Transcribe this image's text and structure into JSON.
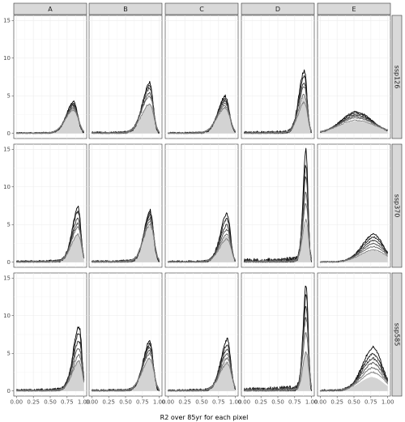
{
  "chart_data": {
    "type": "area",
    "title": "",
    "xlabel": "R2 over 85yr for each pixel",
    "ylabel": "",
    "xlim": [
      0,
      1
    ],
    "ylim": [
      0,
      15
    ],
    "x_ticks": [
      "0.00",
      "0.25",
      "0.50",
      "0.75",
      "1.00"
    ],
    "y_ticks": [
      "0",
      "5",
      "10",
      "15"
    ],
    "grid": true,
    "facet_columns": [
      "A",
      "B",
      "C",
      "D",
      "E"
    ],
    "facet_rows": [
      "ssp126",
      "ssp370",
      "ssp585"
    ],
    "fill_color": "#d3d3d3",
    "line_colors": [
      "#000000",
      "#1a1a1a",
      "#333333",
      "#4d4d4d",
      "#666666",
      "#808080"
    ],
    "panels": [
      {
        "row": "ssp126",
        "col": "A",
        "peak_x": 0.86,
        "peak_y": [
          4.1,
          3.8,
          3.6,
          3.4,
          3.2,
          3.0
        ],
        "fill_peak": 3.3,
        "width": 0.12,
        "right_width": 0.06
      },
      {
        "row": "ssp126",
        "col": "B",
        "peak_x": 0.87,
        "peak_y": [
          6.5,
          6.2,
          5.8,
          5.2,
          4.8,
          3.8
        ],
        "fill_peak": 3.8,
        "width": 0.12,
        "right_width": 0.05
      },
      {
        "row": "ssp126",
        "col": "C",
        "peak_x": 0.86,
        "peak_y": [
          4.8,
          4.5,
          4.2,
          3.9,
          3.6,
          3.3
        ],
        "fill_peak": 3.5,
        "width": 0.12,
        "right_width": 0.06
      },
      {
        "row": "ssp126",
        "col": "D",
        "peak_x": 0.9,
        "peak_y": [
          8.1,
          7.4,
          6.5,
          6.0,
          5.0,
          4.0
        ],
        "fill_peak": 4.8,
        "width": 0.09,
        "right_width": 0.04
      },
      {
        "row": "ssp126",
        "col": "E",
        "peak_x": 0.55,
        "peak_y": [
          2.8,
          2.6,
          2.4,
          2.2,
          2.0,
          1.7
        ],
        "fill_peak": 1.6,
        "width": 0.25,
        "right_width": 0.25
      },
      {
        "row": "ssp370",
        "col": "A",
        "peak_x": 0.92,
        "peak_y": [
          7.0,
          6.5,
          5.6,
          5.0,
          4.5,
          3.6
        ],
        "fill_peak": 3.6,
        "width": 0.1,
        "right_width": 0.04
      },
      {
        "row": "ssp370",
        "col": "B",
        "peak_x": 0.87,
        "peak_y": [
          6.6,
          6.3,
          6.0,
          5.6,
          5.2,
          4.8
        ],
        "fill_peak": 4.6,
        "width": 0.1,
        "right_width": 0.05
      },
      {
        "row": "ssp370",
        "col": "C",
        "peak_x": 0.88,
        "peak_y": [
          6.3,
          5.6,
          4.8,
          4.2,
          3.6,
          3.0
        ],
        "fill_peak": 3.4,
        "width": 0.11,
        "right_width": 0.05
      },
      {
        "row": "ssp370",
        "col": "D",
        "peak_x": 0.92,
        "peak_y": [
          14.2,
          12.5,
          11.0,
          9.0,
          7.5,
          5.5
        ],
        "fill_peak": 5.0,
        "width": 0.05,
        "right_width": 0.03
      },
      {
        "row": "ssp370",
        "col": "E",
        "peak_x": 0.8,
        "peak_y": [
          3.6,
          3.2,
          2.8,
          2.4,
          2.0,
          1.6
        ],
        "fill_peak": 1.5,
        "width": 0.2,
        "right_width": 0.15
      },
      {
        "row": "ssp585",
        "col": "A",
        "peak_x": 0.93,
        "peak_y": [
          8.4,
          7.5,
          6.5,
          5.5,
          4.6,
          3.8
        ],
        "fill_peak": 4.0,
        "width": 0.1,
        "right_width": 0.04
      },
      {
        "row": "ssp585",
        "col": "B",
        "peak_x": 0.86,
        "peak_y": [
          6.4,
          6.0,
          5.6,
          5.2,
          4.8,
          4.2
        ],
        "fill_peak": 4.2,
        "width": 0.11,
        "right_width": 0.05
      },
      {
        "row": "ssp585",
        "col": "C",
        "peak_x": 0.88,
        "peak_y": [
          6.6,
          6.0,
          5.4,
          4.8,
          4.2,
          3.6
        ],
        "fill_peak": 3.8,
        "width": 0.11,
        "right_width": 0.05
      },
      {
        "row": "ssp585",
        "col": "D",
        "peak_x": 0.92,
        "peak_y": [
          13.8,
          12.6,
          11.0,
          9.5,
          7.5,
          5.0
        ],
        "fill_peak": 5.0,
        "width": 0.05,
        "right_width": 0.03
      },
      {
        "row": "ssp585",
        "col": "E",
        "peak_x": 0.78,
        "peak_y": [
          5.6,
          4.8,
          4.2,
          3.6,
          3.0,
          2.4
        ],
        "fill_peak": 1.8,
        "width": 0.18,
        "right_width": 0.14
      }
    ]
  }
}
